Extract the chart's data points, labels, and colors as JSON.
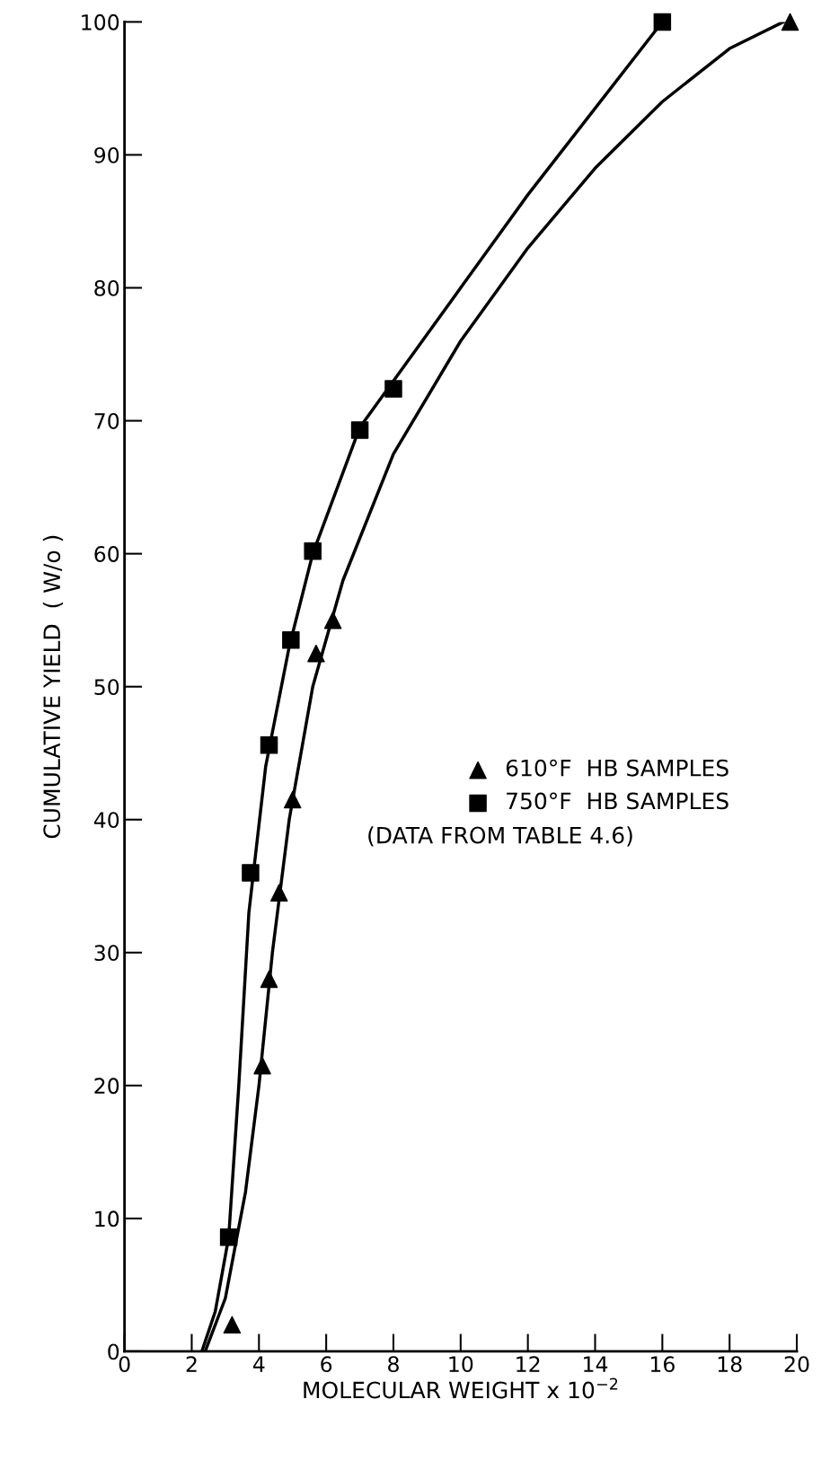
{
  "chart_data": {
    "type": "scatter",
    "xlabel": "MOLECULAR WEIGHT x 10$^{−2}$",
    "ylabel": "CUMULATIVE YIELD  ( W/o )",
    "xlim": [
      0,
      20
    ],
    "xticks": [
      0,
      2,
      4,
      6,
      8,
      10,
      12,
      14,
      16,
      18,
      20
    ],
    "ylim": [
      0,
      100
    ],
    "yticks": [
      0,
      10,
      20,
      30,
      40,
      50,
      60,
      70,
      80,
      90,
      100
    ],
    "grid": false,
    "legend": "right",
    "annotations": [
      "(DATA FROM TABLE 4.6)"
    ],
    "series": [
      {
        "name": "610°F  HB SAMPLES",
        "marker": "triangle",
        "color": "#000000",
        "x": [
          3.2,
          4.1,
          4.3,
          4.6,
          5.0,
          5.7,
          6.2,
          19.8
        ],
        "values": [
          2,
          21.5,
          28,
          34.5,
          41.5,
          52.5,
          55,
          100
        ]
      },
      {
        "name": "750°F  HB SAMPLES",
        "marker": "square",
        "color": "#000000",
        "x": [
          3.1,
          3.75,
          4.3,
          4.95,
          5.6,
          7.0,
          8.0,
          16.0
        ],
        "values": [
          8.6,
          36,
          45.6,
          53.5,
          60.2,
          69.3,
          72.4,
          100
        ]
      },
      {
        "type": "line",
        "color": "#000000",
        "x": [
          2.4,
          3.0,
          3.6,
          4.0,
          4.4,
          4.9,
          5.6,
          6.5,
          8,
          10,
          12,
          14,
          16,
          18,
          19.6
        ],
        "values": [
          0,
          4,
          12,
          20,
          30,
          40,
          50,
          58,
          67.5,
          76,
          83,
          89,
          94,
          98,
          100
        ]
      },
      {
        "type": "line",
        "color": "#000000",
        "x": [
          2.3,
          2.7,
          3.1,
          3.4,
          3.7,
          4.2,
          4.9,
          5.6,
          7.0,
          8,
          10,
          12,
          14,
          16
        ],
        "values": [
          0,
          3,
          8.6,
          20,
          33,
          44,
          53,
          60,
          69.5,
          73,
          80,
          87,
          93.5,
          100
        ]
      }
    ]
  }
}
